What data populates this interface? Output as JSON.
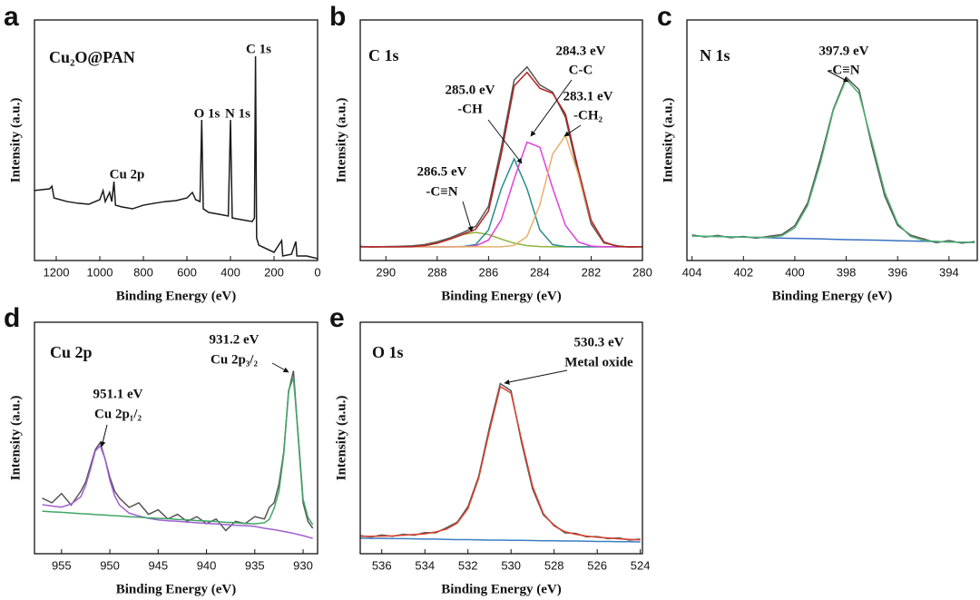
{
  "chart_data": [
    {
      "type": "line",
      "panel": "a",
      "title": "Cu₂O@PAN",
      "xlabel": "Binding Energy (eV)",
      "ylabel": "Intensity (a.u.)",
      "xlim": [
        1300,
        0
      ],
      "ylim": [
        0,
        100
      ],
      "xticks": [
        1200,
        1000,
        800,
        600,
        400,
        200,
        0
      ],
      "annotations": [
        "C 1s",
        "O 1s",
        "N 1s",
        "Cu 2p"
      ],
      "x": [
        1300,
        1230,
        1220,
        1210,
        1150,
        1100,
        1050,
        1000,
        985,
        975,
        955,
        945,
        935,
        928,
        900,
        850,
        800,
        750,
        700,
        650,
        600,
        575,
        560,
        540,
        532,
        525,
        500,
        450,
        410,
        400,
        392,
        350,
        300,
        290,
        285,
        280,
        270,
        200,
        165,
        160,
        120,
        100,
        95,
        50,
        0
      ],
      "series": [
        {
          "color": "#1a1a1a",
          "values": [
            29.1,
            29.8,
            30.9,
            26.0,
            24.5,
            23.8,
            23.4,
            25.3,
            29.1,
            24.5,
            28.3,
            24.5,
            32.8,
            23.0,
            22.3,
            21.5,
            23.0,
            23.8,
            24.5,
            24.9,
            26.0,
            28.3,
            25.3,
            24.5,
            58.5,
            21.5,
            20.0,
            19.2,
            18.5,
            58.5,
            17.7,
            17.0,
            16.2,
            17.7,
            84.9,
            9.4,
            6.4,
            3.4,
            8.3,
            1.9,
            2.6,
            7.9,
            1.9,
            1.9,
            0.8
          ]
        }
      ]
    },
    {
      "type": "line",
      "panel": "b",
      "title": "C 1s",
      "xlabel": "Binding Energy (eV)",
      "ylabel": "Intensity (a.u.)",
      "xlim": [
        291,
        280
      ],
      "ylim": [
        0,
        100
      ],
      "xticks": [
        290,
        288,
        286,
        284,
        282,
        280
      ],
      "annotations": [
        "286.5 eV",
        "-C≡N",
        "285.0 eV",
        "-CH",
        "284.3 eV",
        "C-C",
        "283.1 eV",
        "-CH₂"
      ],
      "x": [
        291,
        290.5,
        290,
        289.5,
        289,
        288.5,
        288,
        287.5,
        287,
        286.5,
        286,
        285.5,
        285,
        284.5,
        284,
        283.5,
        283,
        282.5,
        282,
        281.5,
        281,
        280.5,
        280
      ],
      "series": [
        {
          "color": "#555555",
          "values": [
            5.9,
            5.5,
            5.8,
            5.9,
            6.1,
            6.6,
            7.8,
            9.4,
            11.6,
            14.2,
            22.5,
            47.0,
            75.0,
            80.5,
            73.0,
            70.0,
            59.5,
            36.0,
            15.2,
            7.3,
            6.2,
            5.5,
            5.8
          ]
        },
        {
          "color": "#8db33a",
          "values": [
            5.7,
            5.7,
            5.7,
            5.7,
            5.8,
            6.2,
            7.2,
            8.9,
            10.8,
            11.7,
            10.8,
            8.9,
            7.2,
            6.2,
            5.8,
            5.7,
            5.7,
            5.7,
            5.7,
            5.7,
            5.7,
            5.7,
            5.7
          ]
        },
        {
          "color": "#2a8c8c",
          "values": [
            5.7,
            5.7,
            5.7,
            5.7,
            5.7,
            5.7,
            5.7,
            5.7,
            5.8,
            6.6,
            12.7,
            29.9,
            42.3,
            29.9,
            12.7,
            6.6,
            5.8,
            5.7,
            5.7,
            5.7,
            5.7,
            5.7,
            5.7
          ]
        },
        {
          "color": "#e040e0",
          "values": [
            5.7,
            5.7,
            5.7,
            5.7,
            5.7,
            5.7,
            5.7,
            5.7,
            5.7,
            6.1,
            8.5,
            17.0,
            33.9,
            49.2,
            47.1,
            30.1,
            14.6,
            7.7,
            6.0,
            5.7,
            5.7,
            5.7,
            5.7
          ]
        },
        {
          "color": "#e8b06a",
          "values": [
            5.7,
            5.7,
            5.7,
            5.7,
            5.7,
            5.7,
            5.7,
            5.7,
            5.7,
            5.7,
            5.7,
            5.7,
            6.3,
            10.0,
            23.1,
            44.2,
            51.9,
            35.8,
            16.4,
            7.7,
            5.9,
            5.7,
            5.7
          ]
        },
        {
          "color": "#b22222",
          "values": [
            5.7,
            5.7,
            5.7,
            5.7,
            5.8,
            6.2,
            7.2,
            8.9,
            10.9,
            13.0,
            20.6,
            44.4,
            72.6,
            78.2,
            71.6,
            69.5,
            60.9,
            37.8,
            16.7,
            7.7,
            5.9,
            5.7,
            5.7
          ]
        }
      ]
    },
    {
      "type": "line",
      "panel": "c",
      "title": "N 1s",
      "xlabel": "Binding Energy (eV)",
      "ylabel": "Intensity (a.u.)",
      "xlim": [
        404.2,
        392.9
      ],
      "ylim": [
        0,
        100
      ],
      "xticks": [
        404,
        402,
        400,
        398,
        396,
        394
      ],
      "annotations": [
        "397.9 eV",
        "-C≡N"
      ],
      "x": [
        404,
        403.5,
        403,
        402.5,
        402,
        401.5,
        401,
        400.5,
        400,
        399.5,
        399,
        398.5,
        398,
        397.5,
        397,
        396.5,
        396,
        395.5,
        395,
        394.5,
        394,
        393.5,
        393
      ],
      "series": [
        {
          "color": "#555555",
          "values": [
            10.6,
            9.8,
            10.4,
            9.5,
            10.0,
            9.3,
            10.1,
            10.8,
            14.5,
            24.0,
            42.5,
            63.0,
            76.2,
            71.0,
            47.5,
            26.8,
            14.6,
            10.6,
            9.0,
            7.4,
            8.3,
            7.2,
            7.9
          ]
        },
        {
          "color": "#3a6fc4",
          "values": [
            10.2,
            10.1,
            9.95,
            9.8,
            9.7,
            9.6,
            9.5,
            9.3,
            9.2,
            9.1,
            9.0,
            8.8,
            8.7,
            8.6,
            8.5,
            8.4,
            8.2,
            8.1,
            8.0,
            7.9,
            7.7,
            7.6,
            7.5
          ]
        },
        {
          "color": "#4caf6e",
          "values": [
            10.2,
            10.1,
            10.0,
            9.8,
            9.7,
            9.6,
            9.6,
            10.3,
            13.6,
            22.9,
            40.8,
            62.5,
            75.4,
            69.4,
            49.2,
            28.4,
            15.4,
            10.0,
            8.4,
            7.9,
            7.7,
            7.6,
            7.5
          ]
        }
      ]
    },
    {
      "type": "line",
      "panel": "d",
      "title": "Cu 2p",
      "xlabel": "Binding Energy (eV)",
      "ylabel": "Intensity (a.u.)",
      "xlim": [
        957.8,
        928.5
      ],
      "ylim": [
        0,
        100
      ],
      "xticks": [
        955,
        950,
        945,
        940,
        935,
        930
      ],
      "annotations": [
        "951.1 eV",
        "Cu 2p₁/₂",
        "931.2 eV",
        "Cu 2p₃/₂"
      ],
      "x": [
        957,
        956,
        955,
        954,
        953,
        952.5,
        952,
        951.5,
        951,
        950.5,
        950,
        949.5,
        949,
        948,
        947,
        946,
        945,
        944,
        943,
        942,
        941,
        940,
        939,
        938,
        937,
        936,
        935,
        934,
        933.5,
        933,
        932.5,
        932,
        931.5,
        931,
        930.5,
        930,
        929.5,
        929
      ],
      "series": [
        {
          "color": "#555555",
          "values": [
            24,
            22,
            26,
            21,
            27,
            31,
            38,
            45,
            48,
            41,
            33,
            27,
            24,
            20,
            22,
            17,
            19,
            15,
            17,
            14,
            16,
            13,
            15,
            10,
            14,
            13,
            16,
            15,
            20,
            22,
            30,
            44,
            70,
            79,
            50,
            22,
            14,
            11
          ]
        },
        {
          "color": "#a05fd0",
          "values": [
            21.2,
            20.6,
            20.1,
            21.5,
            24.6,
            29.5,
            36.6,
            44.4,
            46.6,
            41.1,
            31.7,
            25,
            21,
            17.5,
            16.3,
            15.3,
            14.6,
            14.2,
            14.0,
            13.7,
            13.4,
            13.1,
            12.9,
            12.6,
            12.3,
            12.1,
            11.8,
            11.0,
            10.7,
            10.4,
            10.0,
            9.6,
            9.2,
            8.8,
            8.3,
            7.8,
            7.2,
            6.6
          ]
        },
        {
          "color": "#3fa564",
          "values": [
            18.4,
            18.1,
            17.9,
            17.6,
            17.3,
            17.2,
            17.1,
            16.9,
            16.8,
            16.7,
            16.5,
            16.4,
            16.3,
            16.0,
            15.8,
            15.5,
            15.3,
            15.1,
            14.8,
            14.6,
            14.3,
            14.1,
            13.9,
            13.6,
            13.4,
            13.1,
            12.9,
            13.4,
            14.8,
            19.6,
            27,
            43,
            70.6,
            76,
            51,
            23.5,
            15.7,
            12.5
          ]
        }
      ]
    },
    {
      "type": "line",
      "panel": "e",
      "title": "O 1s",
      "xlabel": "Binding Energy (eV)",
      "ylabel": "Intensity (a.u.)",
      "xlim": [
        537,
        523.9
      ],
      "ylim": [
        0,
        100
      ],
      "xticks": [
        536,
        534,
        532,
        530,
        528,
        526,
        524
      ],
      "annotations": [
        "530.3 eV",
        "Metal oxide"
      ],
      "x": [
        537,
        536.5,
        536,
        535.5,
        535,
        534.5,
        534,
        533.5,
        533,
        532.5,
        532,
        531.5,
        531,
        530.5,
        530,
        529.5,
        529,
        528.5,
        528,
        527.5,
        527,
        526.5,
        526,
        525.5,
        525,
        524.5,
        524
      ],
      "series": [
        {
          "color": "#555555",
          "values": [
            7.8,
            7.2,
            8.1,
            7.5,
            8.4,
            8.0,
            9.1,
            9.0,
            11.2,
            13.6,
            20.3,
            33.5,
            54.6,
            73.5,
            70.4,
            47.5,
            28.0,
            16.8,
            12.4,
            9.0,
            8.8,
            7.3,
            7.4,
            6.5,
            6.8,
            5.9,
            6.3
          ]
        },
        {
          "color": "#3a7fc4",
          "values": [
            6.7,
            6.6,
            6.6,
            6.5,
            6.5,
            6.4,
            6.3,
            6.3,
            6.2,
            6.1,
            6.1,
            6.0,
            5.9,
            5.9,
            5.8,
            5.8,
            5.7,
            5.6,
            5.6,
            5.5,
            5.5,
            5.4,
            5.3,
            5.3,
            5.2,
            5.2,
            5.1
          ]
        },
        {
          "color": "#d9432f",
          "values": [
            7.5,
            7.5,
            7.6,
            7.7,
            8.0,
            8.3,
            8.6,
            9.4,
            10.6,
            13.2,
            19.5,
            32.7,
            53.2,
            72.2,
            69.4,
            48.7,
            29.1,
            17.3,
            12.0,
            9.5,
            8.4,
            7.6,
            7.1,
            6.8,
            6.4,
            6.2,
            6.0
          ]
        }
      ]
    }
  ]
}
